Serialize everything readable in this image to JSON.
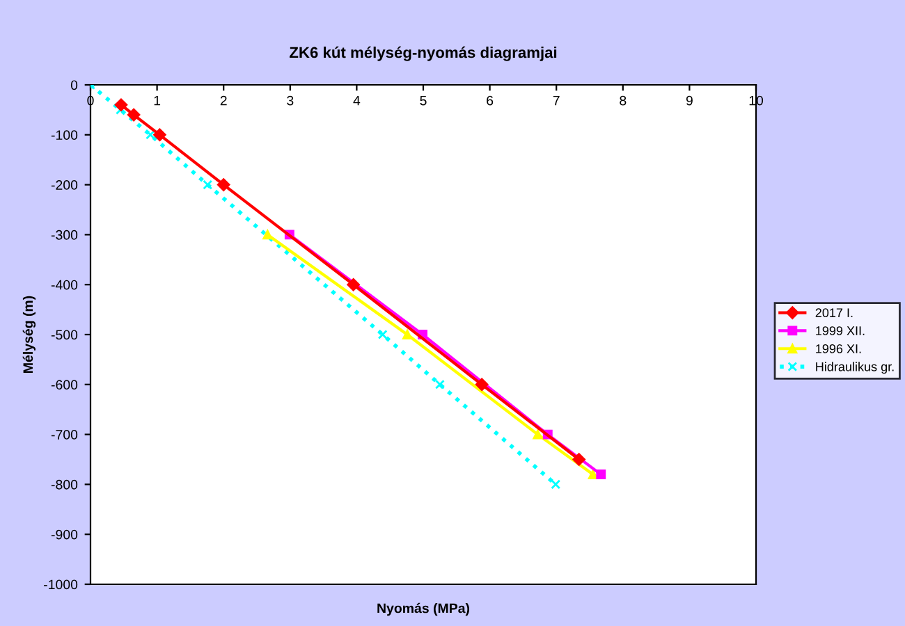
{
  "chart_data": {
    "type": "line",
    "title": "ZK6 kút mélység-nyomás diagramjai",
    "xlabel": "Nyomás (MPa)",
    "ylabel": "Mélység (m)",
    "xlim": [
      0,
      10
    ],
    "xticks": [
      0,
      1,
      2,
      3,
      4,
      5,
      6,
      7,
      8,
      9,
      10
    ],
    "ylim": [
      -1000,
      0
    ],
    "yticks": [
      -1000,
      -900,
      -800,
      -700,
      -600,
      -500,
      -400,
      -300,
      -200,
      -100,
      0
    ],
    "grid": false,
    "legend": "right",
    "series": [
      {
        "name": "2017 I.",
        "color": "#ff0000",
        "marker": "diamond",
        "line_style": "solid",
        "x": [
          0.46,
          0.65,
          1.04,
          2.0,
          3.95,
          5.88,
          7.34
        ],
        "values": [
          -40,
          -60,
          -100,
          -200,
          -400,
          -600,
          -750
        ]
      },
      {
        "name": "1999 XII.",
        "color": "#ff00ff",
        "marker": "square",
        "line_style": "solid",
        "x": [
          2.99,
          4.99,
          6.87,
          7.67
        ],
        "values": [
          -300,
          -500,
          -700,
          -780
        ]
      },
      {
        "name": "1996 XI.",
        "color": "#ffff00",
        "marker": "triangle",
        "line_style": "solid",
        "x": [
          2.66,
          4.76,
          6.72,
          7.55
        ],
        "values": [
          -300,
          -500,
          -700,
          -780
        ]
      },
      {
        "name": "Hidraulikus gr.",
        "color": "#00ffff",
        "marker": "cross",
        "line_style": "dotted",
        "x": [
          0,
          0.45,
          0.9,
          1.76,
          4.39,
          5.25,
          6.99
        ],
        "values": [
          0,
          -50,
          -100,
          -200,
          -500,
          -600,
          -800
        ]
      }
    ]
  }
}
